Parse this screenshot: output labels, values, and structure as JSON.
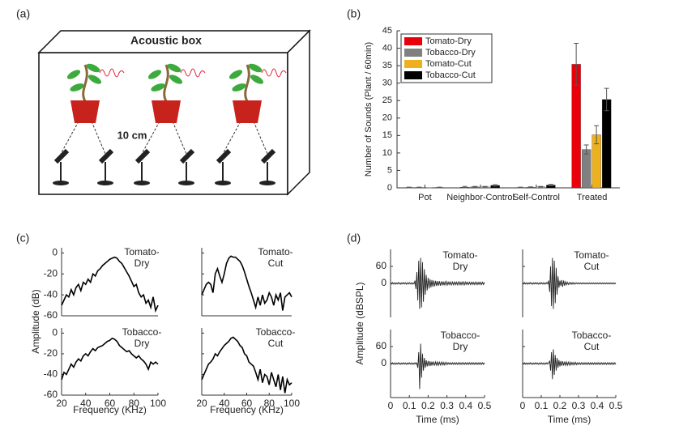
{
  "panel_labels": [
    "(a)",
    "(b)",
    "(c)",
    "(d)"
  ],
  "diagram": {
    "title": "Acoustic box",
    "distance": "10 cm"
  },
  "chart_data": [
    {
      "type": "bar",
      "ylabel": "Number of Sounds (Plant / 60min)",
      "categories": [
        "Pot",
        "Neighbor-Control",
        "Self-Control",
        "Treated"
      ],
      "ylim": [
        0,
        45
      ],
      "yticks": [
        0,
        5,
        10,
        15,
        20,
        25,
        30,
        35,
        40,
        45
      ],
      "legend": "upper left",
      "series": [
        {
          "name": "Tomato-Dry",
          "color": "#e8000b",
          "values": [
            0.1,
            0.2,
            0.1,
            35.4
          ],
          "errors": [
            0.1,
            0.2,
            0.1,
            6
          ]
        },
        {
          "name": "Tobacco-Dry",
          "color": "#808080",
          "values": [
            0.1,
            0.3,
            0.2,
            11
          ],
          "errors": [
            0.1,
            0.1,
            0.1,
            1.3
          ]
        },
        {
          "name": "Tomato-Cut",
          "color": "#edb120",
          "values": [
            0,
            0.3,
            0.3,
            15.2
          ],
          "errors": [
            0,
            0.1,
            0.1,
            2.6
          ]
        },
        {
          "name": "Tobacco-Cut",
          "color": "#000000",
          "values": [
            0.1,
            0.7,
            0.8,
            25.3
          ],
          "errors": [
            0.1,
            0.2,
            0.2,
            3.2
          ]
        }
      ]
    },
    {
      "type": "line",
      "ylabel": "Amplitude (dB)",
      "xlabel": "Frequency  (KHz)",
      "color": "#000000",
      "x": [
        20,
        22,
        24,
        26,
        28,
        30,
        32,
        34,
        36,
        38,
        40,
        42,
        44,
        46,
        48,
        50,
        52,
        54,
        56,
        58,
        60,
        62,
        64,
        66,
        68,
        70,
        72,
        74,
        76,
        78,
        80,
        82,
        84,
        86,
        88,
        90,
        92,
        94,
        96,
        98,
        100
      ],
      "xlim": [
        20,
        100
      ],
      "xticks": [
        20,
        40,
        60,
        80,
        100
      ],
      "ylim": [
        -60,
        5
      ],
      "yticks": [
        -60,
        -40,
        -20,
        0
      ],
      "panels": [
        {
          "title": "Tomato-Dry",
          "values": [
            -50,
            -45,
            -40,
            -42,
            -35,
            -40,
            -33,
            -30,
            -36,
            -28,
            -30,
            -25,
            -28,
            -20,
            -22,
            -17,
            -15,
            -12,
            -10,
            -8,
            -6,
            -5,
            -4,
            -5,
            -8,
            -10,
            -14,
            -18,
            -22,
            -27,
            -32,
            -30,
            -38,
            -42,
            -40,
            -48,
            -45,
            -52,
            -42,
            -55,
            -50
          ]
        },
        {
          "title": "Tomato-Cut",
          "values": [
            -40,
            -35,
            -30,
            -28,
            -30,
            -38,
            -20,
            -15,
            -22,
            -28,
            -20,
            -10,
            -5,
            -3,
            -4,
            -4,
            -6,
            -8,
            -12,
            -18,
            -25,
            -32,
            -38,
            -45,
            -52,
            -42,
            -50,
            -40,
            -48,
            -45,
            -38,
            -42,
            -50,
            -40,
            -45,
            -38,
            -55,
            -42,
            -40,
            -38,
            -42
          ]
        },
        {
          "title": "Tobacco-Dry",
          "values": [
            -45,
            -38,
            -40,
            -35,
            -30,
            -33,
            -28,
            -25,
            -27,
            -22,
            -20,
            -22,
            -18,
            -15,
            -17,
            -14,
            -13,
            -12,
            -10,
            -8,
            -7,
            -5,
            -6,
            -8,
            -12,
            -14,
            -16,
            -18,
            -17,
            -20,
            -22,
            -24,
            -22,
            -25,
            -27,
            -30,
            -35,
            -28,
            -30,
            -28,
            -30
          ]
        },
        {
          "title": "Tobacco-Cut",
          "values": [
            -45,
            -40,
            -35,
            -30,
            -28,
            -25,
            -20,
            -22,
            -18,
            -15,
            -12,
            -10,
            -8,
            -5,
            -4,
            -6,
            -8,
            -12,
            -14,
            -20,
            -22,
            -28,
            -30,
            -32,
            -38,
            -45,
            -35,
            -48,
            -40,
            -42,
            -50,
            -38,
            -45,
            -52,
            -40,
            -55,
            -42,
            -58,
            -45,
            -50,
            -48
          ]
        }
      ]
    },
    {
      "type": "line",
      "ylabel": "Amplitude (dBSPL)",
      "xlabel": "Time (ms)",
      "color": "#222222",
      "x": [
        0,
        0.005,
        0.01,
        0.015,
        0.02,
        0.025,
        0.03,
        0.035,
        0.04,
        0.045,
        0.05,
        0.055,
        0.06,
        0.065,
        0.07,
        0.075,
        0.08,
        0.085,
        0.09,
        0.095,
        0.1,
        0.105,
        0.11,
        0.115,
        0.12,
        0.125,
        0.13,
        0.135,
        0.14,
        0.145,
        0.15,
        0.155,
        0.16,
        0.165,
        0.17,
        0.175,
        0.18,
        0.185,
        0.19,
        0.195,
        0.2,
        0.205,
        0.21,
        0.215,
        0.22,
        0.225,
        0.23,
        0.235,
        0.24,
        0.245,
        0.25,
        0.255,
        0.26,
        0.265,
        0.27,
        0.275,
        0.28,
        0.285,
        0.29,
        0.295,
        0.3,
        0.305,
        0.31,
        0.315,
        0.32,
        0.325,
        0.33,
        0.335,
        0.34,
        0.345,
        0.35,
        0.355,
        0.36,
        0.365,
        0.37,
        0.375,
        0.38,
        0.385,
        0.39,
        0.395,
        0.4,
        0.405,
        0.41,
        0.415,
        0.42,
        0.425,
        0.43,
        0.435,
        0.44,
        0.445,
        0.45,
        0.455,
        0.46,
        0.465,
        0.47,
        0.475,
        0.48,
        0.485,
        0.49,
        0.495,
        0.5
      ],
      "xlim": [
        0,
        0.5
      ],
      "xticks": [
        0,
        0.1,
        0.2,
        0.3,
        0.4,
        0.5
      ],
      "ylim": [
        -120,
        120
      ],
      "yticks": [
        0,
        60
      ],
      "panels": [
        {
          "title": "Tomato-Dry",
          "values": [
            2,
            -2,
            3,
            -2,
            2,
            -3,
            2,
            -2,
            3,
            -2,
            2,
            -3,
            2,
            -2,
            3,
            -2,
            2,
            -3,
            2,
            -2,
            3,
            -2,
            2,
            -3,
            2,
            -2,
            10,
            -20,
            40,
            -60,
            80,
            -90,
            90,
            -85,
            75,
            -65,
            50,
            -40,
            30,
            -25,
            20,
            -18,
            15,
            -14,
            12,
            -12,
            10,
            -10,
            9,
            -9,
            8,
            -8,
            8,
            -8,
            7,
            -7,
            7,
            -7,
            6,
            -6,
            6,
            -5,
            5,
            -5,
            5,
            -5,
            5,
            -5,
            5,
            -5,
            5,
            -5,
            5,
            -5,
            5,
            -5,
            5,
            -5,
            5,
            -5,
            5,
            -4,
            4,
            -4,
            4,
            -4,
            4,
            -4,
            4,
            -4,
            4,
            -4,
            4,
            -4,
            4,
            -4,
            4,
            -4,
            4,
            -4,
            4
          ]
        },
        {
          "title": "Tomato-Cut",
          "values": [
            2,
            -2,
            3,
            -2,
            2,
            -3,
            2,
            -2,
            3,
            -2,
            2,
            -3,
            2,
            -2,
            3,
            -2,
            2,
            -3,
            2,
            -2,
            3,
            -2,
            2,
            -3,
            2,
            -2,
            3,
            -2,
            10,
            -30,
            60,
            -80,
            90,
            -90,
            80,
            -70,
            55,
            -40,
            25,
            -15,
            10,
            -9,
            12,
            -12,
            10,
            -8,
            6,
            -5,
            4,
            -4,
            3,
            -3,
            3,
            -3,
            3,
            -3,
            2,
            -2,
            2,
            -2,
            2,
            -2,
            2,
            -2,
            2,
            -2,
            2,
            -2,
            2,
            -2,
            2,
            -2,
            2,
            -2,
            2,
            -2,
            2,
            -2,
            2,
            -2,
            2,
            -2,
            2,
            -2,
            2,
            -2,
            2,
            -2,
            2,
            -2,
            2,
            -2,
            2,
            -2,
            2,
            -2,
            2,
            -2,
            2,
            -2,
            2
          ]
        },
        {
          "title": "Tobacco-Dry",
          "values": [
            2,
            -2,
            3,
            -2,
            2,
            -3,
            2,
            -2,
            3,
            -2,
            2,
            -3,
            2,
            -2,
            3,
            -2,
            2,
            -3,
            2,
            -2,
            3,
            -2,
            2,
            -3,
            2,
            -2,
            3,
            -2,
            2,
            -15,
            40,
            -90,
            70,
            -50,
            35,
            -25,
            20,
            -15,
            12,
            -10,
            9,
            -9,
            8,
            -8,
            7,
            -7,
            7,
            -7,
            6,
            -6,
            6,
            -6,
            5,
            -5,
            5,
            -5,
            5,
            -5,
            4,
            -4,
            4,
            -3,
            3,
            -3,
            3,
            -3,
            3,
            -3,
            3,
            -3,
            3,
            -3,
            3,
            -3,
            3,
            -3,
            3,
            -3,
            3,
            -3,
            3,
            -3,
            3,
            -3,
            3,
            -3,
            3,
            -3,
            3,
            -3,
            3,
            -3,
            3,
            -3,
            3,
            -3,
            3,
            -3,
            3,
            -3,
            3
          ]
        },
        {
          "title": "Tobacco-Cut",
          "values": [
            2,
            -2,
            3,
            -2,
            2,
            -3,
            2,
            -2,
            3,
            -2,
            2,
            -3,
            2,
            -2,
            3,
            -2,
            2,
            -3,
            2,
            -2,
            3,
            -2,
            2,
            -3,
            2,
            -2,
            3,
            -2,
            2,
            10,
            -25,
            40,
            -55,
            50,
            -40,
            30,
            -25,
            20,
            -15,
            12,
            -10,
            9,
            -8,
            8,
            -7,
            7,
            -6,
            6,
            -6,
            5,
            -5,
            5,
            -5,
            4,
            -4,
            4,
            -4,
            4,
            -4,
            3,
            -3,
            3,
            -3,
            3,
            -3,
            3,
            -3,
            3,
            -3,
            3,
            -3,
            3,
            -3,
            3,
            -3,
            3,
            -3,
            3,
            -3,
            3,
            -3,
            3,
            -3,
            3,
            -3,
            3,
            -3,
            3,
            -3,
            3,
            -3,
            3,
            -3,
            3,
            -3,
            3,
            -3,
            3,
            -3,
            3,
            -3
          ]
        }
      ]
    }
  ]
}
